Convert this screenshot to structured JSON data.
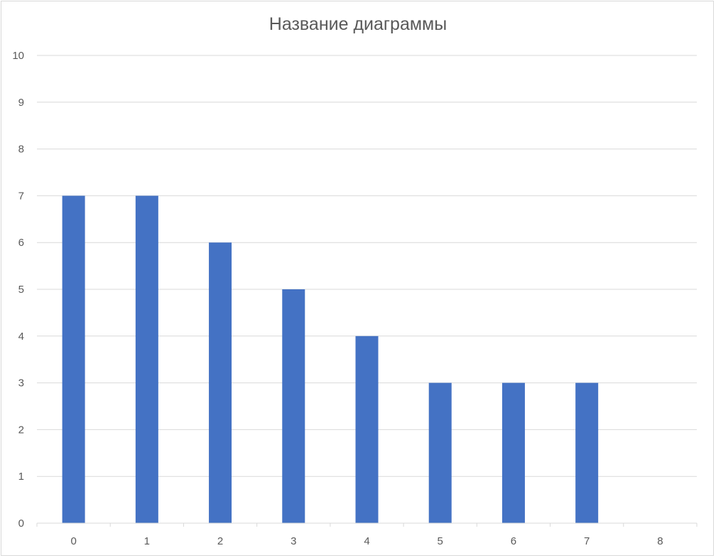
{
  "chart_data": {
    "type": "bar",
    "title": "Название диаграммы",
    "xlabel": "",
    "ylabel": "",
    "categories": [
      "0",
      "1",
      "2",
      "3",
      "4",
      "5",
      "6",
      "7",
      "8"
    ],
    "values": [
      7,
      7,
      6,
      5,
      4,
      3,
      3,
      3,
      0
    ],
    "ylim": [
      0,
      10
    ],
    "yticks": [
      0,
      1,
      2,
      3,
      4,
      5,
      6,
      7,
      8,
      9,
      10
    ],
    "grid": true,
    "legend": "none",
    "colors": {
      "bar": "#4472C4",
      "grid": "#d9d9d9",
      "text": "#595959"
    }
  }
}
